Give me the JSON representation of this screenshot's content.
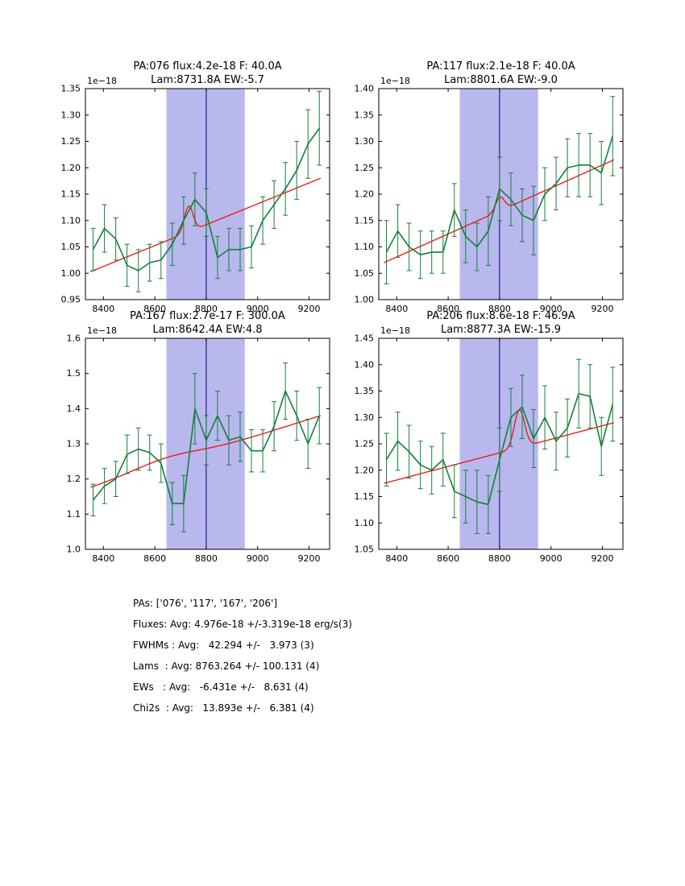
{
  "colors": {
    "data_line": "#157f3b",
    "model_line": "#ee1111",
    "band_fill": "#b8b8ee",
    "vline": "#000080",
    "axis": "#000000",
    "text": "#000000",
    "background": "#ffffff"
  },
  "footer": {
    "lines": [
      "PAs: ['076', '117', '167', '206']",
      "Fluxes: Avg: 4.976e-18 +/-3.319e-18 erg/s(3)",
      "FWHMs : Avg:   42.294 +/-   3.973 (3)",
      "Lams  : Avg: 8763.264 +/- 100.131 (4)",
      "EWs   : Avg:   -6.431e +/-   8.631 (4)",
      "Chi2s  : Avg:   13.893e +/-   6.381 (4)"
    ]
  },
  "chart_data": [
    {
      "type": "line",
      "title1": "PA:076 flux:4.2e-18 F: 40.0A",
      "title2": "Lam:8731.8A EW:-5.7",
      "offset_label": "1e−18",
      "xlim": [
        8330,
        9280
      ],
      "ylim": [
        0.95,
        1.35
      ],
      "xtick_vals": [
        8400,
        8600,
        8800,
        9000,
        9200
      ],
      "xtick_labels": [
        "8400",
        "8600",
        "8800",
        "9000",
        "9200"
      ],
      "ytick_vals": [
        0.95,
        1.0,
        1.05,
        1.1,
        1.15,
        1.2,
        1.25,
        1.3,
        1.35
      ],
      "ytick_labels": [
        "0.95",
        "1.00",
        "1.05",
        "1.10",
        "1.15",
        "1.20",
        "1.25",
        "1.30",
        "1.35"
      ],
      "band": [
        8645,
        8950
      ],
      "vline": 8800,
      "x": [
        8360,
        8404,
        8448,
        8492,
        8536,
        8580,
        8624,
        8668,
        8712,
        8756,
        8800,
        8844,
        8888,
        8932,
        8976,
        9020,
        9064,
        9108,
        9152,
        9196,
        9240
      ],
      "y": [
        1.045,
        1.085,
        1.065,
        1.015,
        1.005,
        1.02,
        1.025,
        1.055,
        1.1,
        1.14,
        1.115,
        1.03,
        1.045,
        1.045,
        1.05,
        1.1,
        1.13,
        1.16,
        1.195,
        1.245,
        1.275
      ],
      "yerr": [
        0.04,
        0.045,
        0.04,
        0.04,
        0.04,
        0.035,
        0.035,
        0.04,
        0.045,
        0.05,
        0.045,
        0.04,
        0.04,
        0.04,
        0.04,
        0.045,
        0.045,
        0.05,
        0.055,
        0.065,
        0.07
      ],
      "model": {
        "x0": 8350,
        "y0": 1.003,
        "x1": 9245,
        "y1": 1.18,
        "center": 8731.8,
        "fwhm": 40,
        "amp": 0.049
      }
    },
    {
      "type": "line",
      "title1": "PA:117 flux:2.1e-18 F: 40.0A",
      "title2": "Lam:8801.6A EW:-9.0",
      "offset_label": "1e−18",
      "xlim": [
        8330,
        9280
      ],
      "ylim": [
        1.0,
        1.4
      ],
      "xtick_vals": [
        8400,
        8600,
        8800,
        9000,
        9200
      ],
      "xtick_labels": [
        "8400",
        "8600",
        "8800",
        "9000",
        "9200"
      ],
      "ytick_vals": [
        1.0,
        1.05,
        1.1,
        1.15,
        1.2,
        1.25,
        1.3,
        1.35,
        1.4
      ],
      "ytick_labels": [
        "1.00",
        "1.05",
        "1.10",
        "1.15",
        "1.20",
        "1.25",
        "1.30",
        "1.35",
        "1.40"
      ],
      "band": [
        8645,
        8950
      ],
      "vline": 8800,
      "x": [
        8360,
        8404,
        8448,
        8492,
        8536,
        8580,
        8624,
        8668,
        8712,
        8756,
        8800,
        8844,
        8888,
        8932,
        8976,
        9020,
        9064,
        9108,
        9152,
        9196,
        9240
      ],
      "y": [
        1.09,
        1.13,
        1.1,
        1.085,
        1.09,
        1.09,
        1.17,
        1.12,
        1.1,
        1.13,
        1.21,
        1.19,
        1.16,
        1.15,
        1.2,
        1.22,
        1.25,
        1.255,
        1.255,
        1.24,
        1.31
      ],
      "yerr": [
        0.06,
        0.05,
        0.045,
        0.045,
        0.04,
        0.04,
        0.05,
        0.05,
        0.045,
        0.065,
        0.06,
        0.05,
        0.05,
        0.065,
        0.05,
        0.05,
        0.055,
        0.06,
        0.06,
        0.06,
        0.075
      ],
      "model": {
        "x0": 8350,
        "y0": 1.07,
        "x1": 9245,
        "y1": 1.265,
        "center": 8801.6,
        "fwhm": 40,
        "amp": 0.026
      }
    },
    {
      "type": "line",
      "title1": "PA:167 flux:2.7e-17 F: 300.0A",
      "title2": "Lam:8642.4A EW:4.8",
      "offset_label": "1e−18",
      "xlim": [
        8330,
        9280
      ],
      "ylim": [
        1.0,
        1.6
      ],
      "xtick_vals": [
        8400,
        8600,
        8800,
        9000,
        9200
      ],
      "xtick_labels": [
        "8400",
        "8600",
        "8800",
        "9000",
        "9200"
      ],
      "ytick_vals": [
        1.0,
        1.1,
        1.2,
        1.3,
        1.4,
        1.5,
        1.6
      ],
      "ytick_labels": [
        "1.0",
        "1.1",
        "1.2",
        "1.3",
        "1.4",
        "1.5",
        "1.6"
      ],
      "band": [
        8645,
        8950
      ],
      "vline": 8800,
      "x": [
        8360,
        8404,
        8448,
        8492,
        8536,
        8580,
        8624,
        8668,
        8712,
        8756,
        8800,
        8844,
        8888,
        8932,
        8976,
        9020,
        9064,
        9108,
        9152,
        9196,
        9240
      ],
      "y": [
        1.14,
        1.18,
        1.2,
        1.27,
        1.285,
        1.275,
        1.245,
        1.13,
        1.13,
        1.4,
        1.31,
        1.38,
        1.31,
        1.32,
        1.28,
        1.28,
        1.35,
        1.45,
        1.38,
        1.3,
        1.38
      ],
      "yerr": [
        0.045,
        0.05,
        0.05,
        0.055,
        0.06,
        0.05,
        0.055,
        0.06,
        0.08,
        0.1,
        0.07,
        0.07,
        0.07,
        0.07,
        0.06,
        0.06,
        0.07,
        0.08,
        0.07,
        0.07,
        0.08
      ],
      "model": {
        "x0": 8350,
        "y0": 1.175,
        "x1": 9245,
        "y1": 1.38,
        "center": 8642.4,
        "fwhm": 300,
        "amp": 0.018
      }
    },
    {
      "type": "line",
      "title1": "PA:206 flux:8.6e-18 F: 46.9A",
      "title2": "Lam:8877.3A EW:-15.9",
      "offset_label": "1e−18",
      "xlim": [
        8330,
        9280
      ],
      "ylim": [
        1.05,
        1.45
      ],
      "xtick_vals": [
        8400,
        8600,
        8800,
        9000,
        9200
      ],
      "xtick_labels": [
        "8400",
        "8600",
        "8800",
        "9000",
        "9200"
      ],
      "ytick_vals": [
        1.05,
        1.1,
        1.15,
        1.2,
        1.25,
        1.3,
        1.35,
        1.4,
        1.45
      ],
      "ytick_labels": [
        "1.05",
        "1.10",
        "1.15",
        "1.20",
        "1.25",
        "1.30",
        "1.35",
        "1.40",
        "1.45"
      ],
      "band": [
        8645,
        8950
      ],
      "vline": 8800,
      "x": [
        8360,
        8404,
        8448,
        8492,
        8536,
        8580,
        8624,
        8668,
        8712,
        8756,
        8800,
        8844,
        8888,
        8932,
        8976,
        9020,
        9064,
        9108,
        9152,
        9196,
        9240
      ],
      "y": [
        1.22,
        1.255,
        1.235,
        1.21,
        1.2,
        1.22,
        1.16,
        1.15,
        1.14,
        1.135,
        1.22,
        1.3,
        1.32,
        1.26,
        1.3,
        1.255,
        1.28,
        1.345,
        1.34,
        1.245,
        1.325
      ],
      "yerr": [
        0.05,
        0.055,
        0.05,
        0.045,
        0.045,
        0.05,
        0.05,
        0.05,
        0.06,
        0.055,
        0.06,
        0.055,
        0.06,
        0.055,
        0.06,
        0.055,
        0.055,
        0.065,
        0.06,
        0.055,
        0.07
      ],
      "model": {
        "x0": 8350,
        "y0": 1.175,
        "x1": 9245,
        "y1": 1.29,
        "center": 8877.3,
        "fwhm": 46.9,
        "amp": 0.072
      }
    }
  ]
}
